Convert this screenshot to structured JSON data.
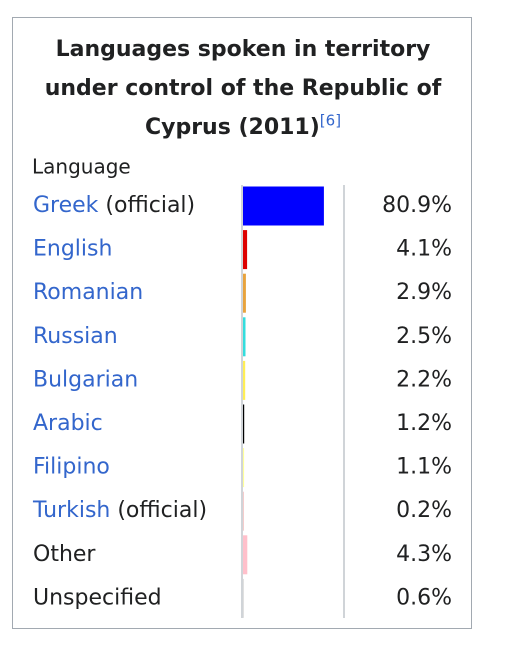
{
  "chart_data": {
    "type": "bar",
    "orientation": "horizontal",
    "title": "Languages spoken in territory under control of the Republic of Cyprus (2011)",
    "title_reference": "[6]",
    "category_header": "Language",
    "categories": [
      "Greek",
      "English",
      "Romanian",
      "Russian",
      "Bulgarian",
      "Arabic",
      "Filipino",
      "Turkish",
      "Other",
      "Unspecified"
    ],
    "category_suffixes": [
      "(official)",
      null,
      null,
      null,
      null,
      null,
      null,
      "(official)",
      null,
      null
    ],
    "linked": [
      true,
      true,
      true,
      true,
      true,
      true,
      true,
      true,
      false,
      false
    ],
    "values": [
      80.9,
      4.1,
      2.9,
      2.5,
      2.2,
      1.2,
      1.1,
      0.2,
      4.3,
      0.6
    ],
    "value_labels": [
      "80.9%",
      "4.1%",
      "2.9%",
      "2.5%",
      "2.2%",
      "1.2%",
      "1.1%",
      "0.2%",
      "4.3%",
      "0.6%"
    ],
    "colors": [
      "#0000ff",
      "#dd0000",
      "#e8a33d",
      "#33dddd",
      "#ffee55",
      "#000000",
      "#ffff99",
      "#cc0000",
      "#ffc0cb",
      "#cccccc"
    ],
    "xlim": [
      0,
      100
    ]
  }
}
